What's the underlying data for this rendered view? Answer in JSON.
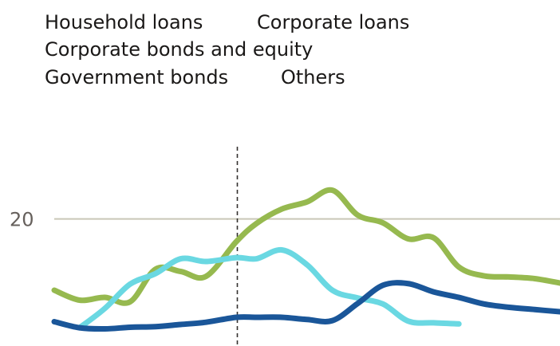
{
  "chart_data": {
    "type": "line",
    "legend": [
      "Household loans",
      "Corporate loans",
      "Corporate bonds and equity",
      "Government bonds",
      "Others"
    ],
    "y_ticks": [
      20
    ],
    "y_tick_labels": [
      "20"
    ],
    "ylim": [
      -3,
      38
    ],
    "xlim": [
      0,
      100
    ],
    "marker_x": 36.2,
    "grid": true,
    "colors": {
      "Corporate bonds and equity": "#96b94f",
      "Government bonds": "#6ad8e2",
      "Household loans": "#1a5699",
      "gridline": "#c9c7b8",
      "marker": "#33302e"
    },
    "series": [
      {
        "name": "Corporate bonds and equity",
        "x": [
          0,
          5,
          10,
          15,
          20,
          25,
          30,
          36,
          40,
          45,
          50,
          55,
          60,
          65,
          70,
          75,
          80,
          85,
          90,
          95,
          100
        ],
        "values": [
          7.1,
          5.3,
          5.8,
          5.0,
          10.9,
          10.5,
          9.6,
          15.9,
          19.2,
          21.8,
          23.1,
          25.2,
          20.7,
          19.3,
          16.4,
          16.6,
          11.3,
          9.7,
          9.5,
          9.2,
          8.4
        ]
      },
      {
        "name": "Government bonds",
        "x": [
          5,
          10,
          15,
          20,
          25,
          30,
          36,
          40,
          45,
          50,
          55,
          60,
          65,
          70,
          75,
          80
        ],
        "values": [
          0.3,
          3.8,
          8.2,
          10.1,
          12.8,
          12.3,
          13.0,
          12.8,
          14.4,
          11.7,
          7.1,
          5.7,
          4.6,
          1.5,
          1.2,
          1.0
        ]
      },
      {
        "name": "Household loans",
        "x": [
          0,
          5,
          10,
          15,
          20,
          25,
          30,
          36,
          40,
          45,
          50,
          55,
          60,
          65,
          70,
          75,
          80,
          85,
          90,
          95,
          100
        ],
        "values": [
          1.4,
          0.3,
          0.1,
          0.4,
          0.5,
          0.9,
          1.3,
          2.2,
          2.2,
          2.2,
          1.8,
          1.6,
          4.7,
          8.0,
          8.3,
          6.8,
          5.8,
          4.6,
          4.0,
          3.6,
          3.2
        ]
      }
    ]
  }
}
